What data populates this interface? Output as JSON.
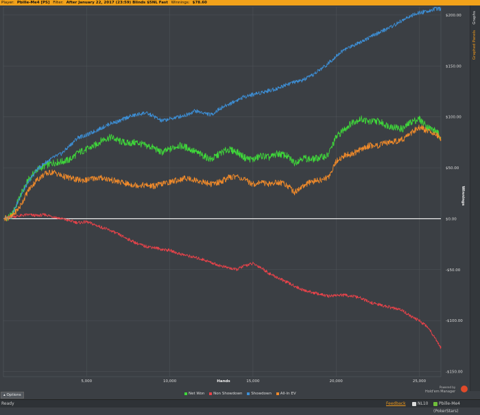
{
  "header": {
    "player_label": "Player:",
    "player_value": "Pbille-Me4 [PS]",
    "filter_label": "Filter:",
    "filter_value": "After January 22, 2017 (23:59) Blinds $5NL Fast",
    "winnings_label": "Winnings:",
    "winnings_value": "$78.60"
  },
  "side_tabs": [
    {
      "label": "Graphs"
    },
    {
      "label": "Graphed Panels"
    }
  ],
  "colors": {
    "net_won": "#3fd83a",
    "non_showdown": "#e9434a",
    "showdown": "#3d8fd6",
    "all_in_ev": "#f08a2a",
    "zero_line": "#ffffff",
    "accent": "#f2a21a"
  },
  "chart_data": {
    "type": "line",
    "title": "",
    "xlabel": "Hands",
    "ylabel": "Winnings",
    "xlim": [
      0,
      26300
    ],
    "ylim": [
      -155,
      208
    ],
    "x_ticks": [
      5000,
      10000,
      15000,
      20000,
      25000
    ],
    "x_tick_labels": [
      "5,000",
      "10,000",
      "15,000",
      "20,000",
      "25,000"
    ],
    "y_ticks": [
      200,
      150,
      100,
      50,
      0,
      -50,
      -100,
      -150
    ],
    "y_tick_labels": [
      "$200.00",
      "$150.00",
      "$100.00",
      "$50.00",
      "$0.00",
      "-$50.00",
      "-$100.00",
      "-$150.00"
    ],
    "grid": true,
    "legend_position": "bottom-center",
    "x": [
      0,
      500,
      1000,
      1500,
      2000,
      2500,
      3000,
      3500,
      4000,
      4500,
      5000,
      5500,
      6000,
      6500,
      7000,
      7500,
      8000,
      8500,
      9000,
      9500,
      10000,
      10500,
      11000,
      11500,
      12000,
      12500,
      13000,
      13500,
      14000,
      14500,
      15000,
      15500,
      16000,
      16500,
      17000,
      17500,
      18000,
      18500,
      19000,
      19500,
      20000,
      20500,
      21000,
      21500,
      22000,
      22500,
      23000,
      23500,
      24000,
      24500,
      25000,
      25500,
      26000,
      26300
    ],
    "series": [
      {
        "name": "Net Won",
        "color": "#3fd83a",
        "values": [
          0,
          3,
          22,
          38,
          48,
          52,
          55,
          56,
          58,
          65,
          68,
          72,
          78,
          80,
          76,
          74,
          75,
          72,
          70,
          65,
          68,
          72,
          70,
          66,
          62,
          58,
          64,
          68,
          66,
          60,
          58,
          62,
          60,
          64,
          62,
          55,
          60,
          58,
          60,
          62,
          80,
          88,
          95,
          98,
          95,
          96,
          92,
          90,
          88,
          95,
          98,
          90,
          86,
          80
        ]
      },
      {
        "name": "Non Showdown",
        "color": "#e9434a",
        "values": [
          0,
          2,
          3,
          4,
          3,
          4,
          2,
          0,
          -2,
          -4,
          -3,
          -6,
          -9,
          -12,
          -16,
          -20,
          -24,
          -27,
          -28,
          -30,
          -31,
          -34,
          -36,
          -38,
          -40,
          -43,
          -46,
          -48,
          -50,
          -46,
          -44,
          -48,
          -54,
          -58,
          -62,
          -66,
          -70,
          -72,
          -74,
          -76,
          -75,
          -75,
          -76,
          -78,
          -82,
          -84,
          -86,
          -88,
          -90,
          -96,
          -100,
          -106,
          -118,
          -127
        ]
      },
      {
        "name": "Showdown",
        "color": "#3d8fd6",
        "values": [
          0,
          2,
          22,
          36,
          48,
          55,
          60,
          64,
          72,
          80,
          82,
          86,
          90,
          94,
          96,
          100,
          102,
          104,
          101,
          96,
          98,
          100,
          102,
          106,
          104,
          102,
          108,
          112,
          116,
          120,
          122,
          124,
          126,
          128,
          132,
          134,
          136,
          140,
          146,
          152,
          160,
          166,
          170,
          174,
          178,
          182,
          186,
          190,
          195,
          199,
          202,
          204,
          206,
          206
        ]
      },
      {
        "name": "All-In EV",
        "color": "#f08a2a",
        "values": [
          0,
          2,
          12,
          28,
          38,
          44,
          46,
          42,
          40,
          38,
          38,
          40,
          40,
          38,
          36,
          34,
          33,
          33,
          32,
          34,
          36,
          38,
          40,
          38,
          36,
          34,
          36,
          40,
          42,
          38,
          34,
          36,
          34,
          36,
          34,
          26,
          32,
          36,
          38,
          40,
          56,
          62,
          64,
          68,
          72,
          72,
          74,
          76,
          78,
          84,
          90,
          86,
          84,
          78
        ]
      }
    ]
  },
  "options_label": "Options",
  "branding": {
    "powered_by": "Powered by",
    "product": "Hold'em Manager"
  },
  "status": {
    "ready": "Ready",
    "feedback": "Feedback",
    "database": "NL10",
    "player": "Pbille-Me4 (PokerStars)"
  }
}
